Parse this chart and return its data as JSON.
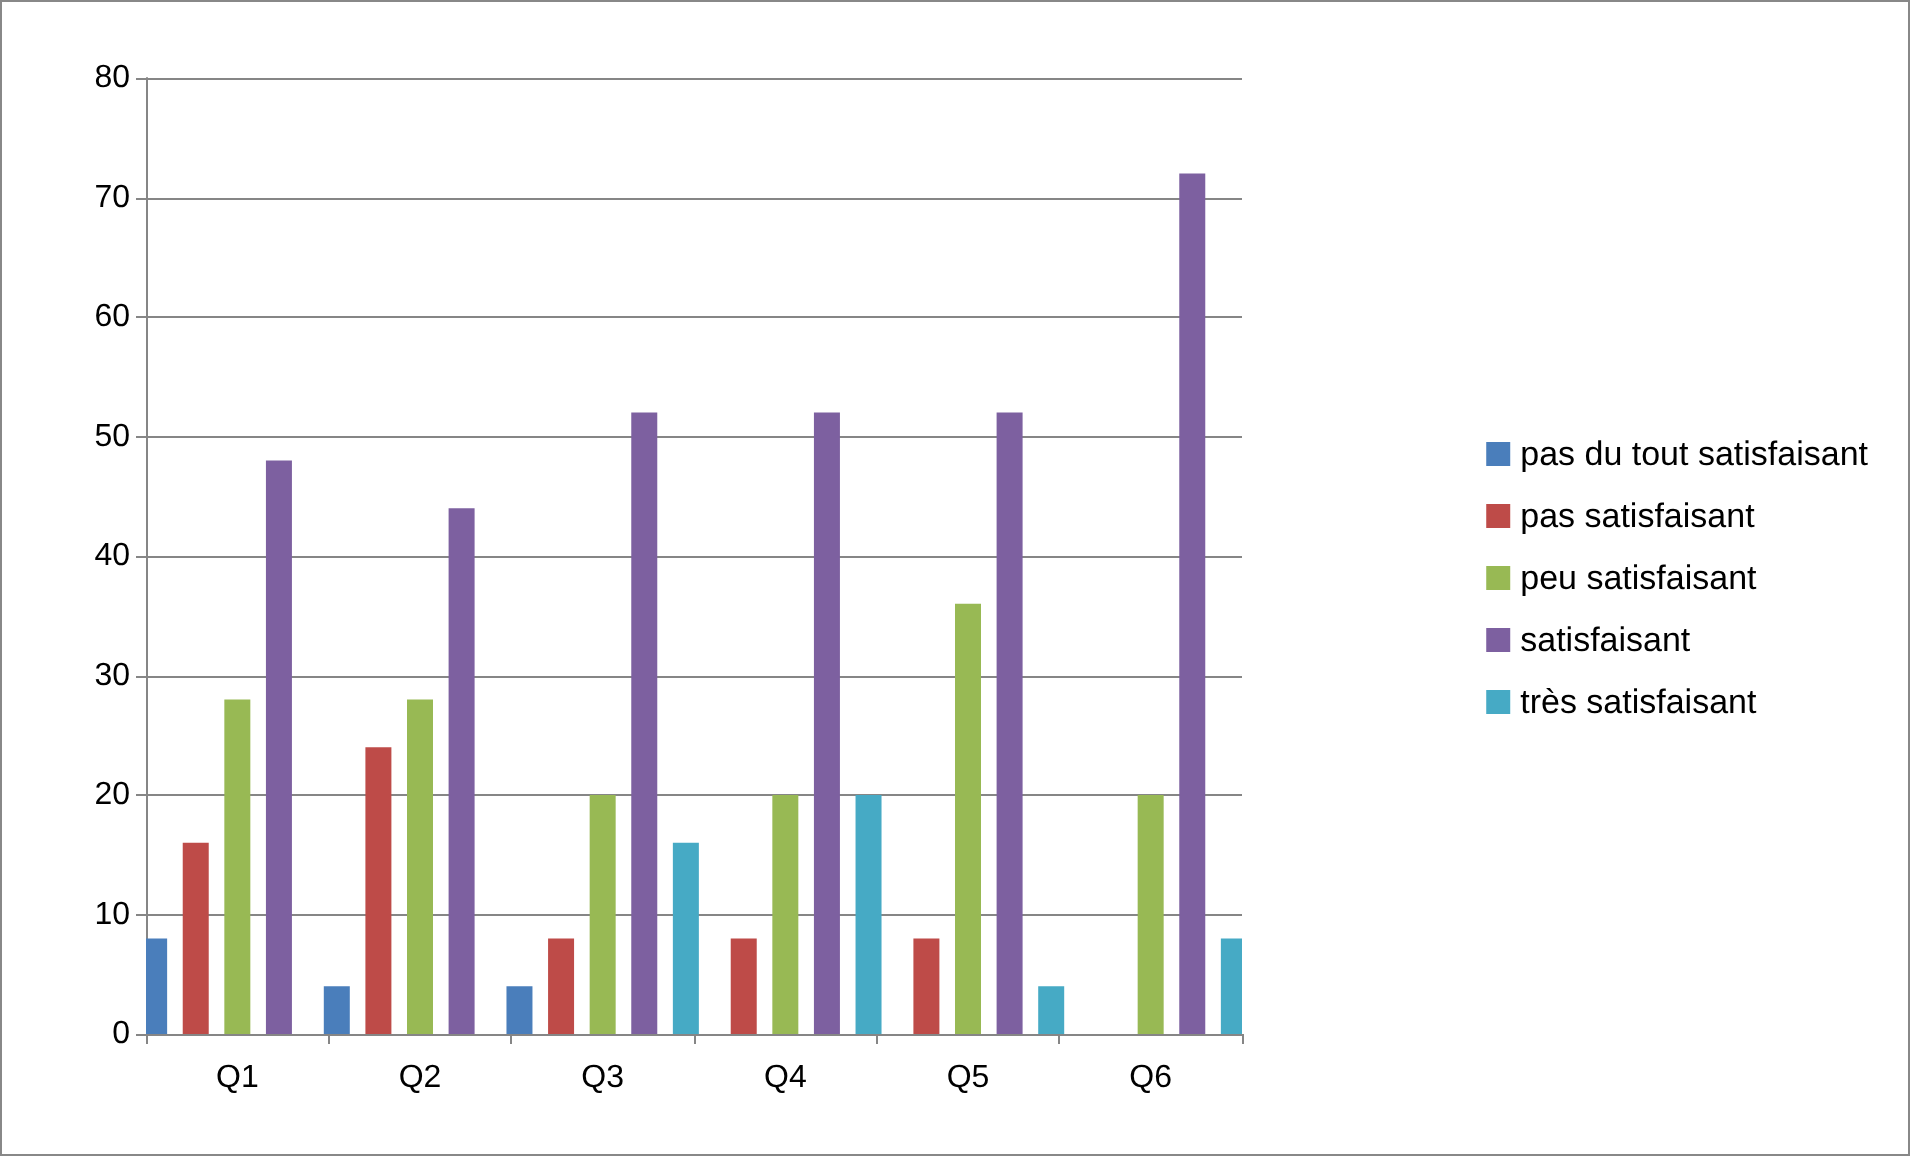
{
  "chart_data": {
    "type": "bar",
    "categories": [
      "Q1",
      "Q2",
      "Q3",
      "Q4",
      "Q5",
      "Q6"
    ],
    "series": [
      {
        "name": "pas du tout satisfaisant",
        "color": "#4a7ebb",
        "values": [
          8,
          4,
          4,
          0,
          0,
          0
        ]
      },
      {
        "name": "pas satisfaisant",
        "color": "#be4b48",
        "values": [
          16,
          24,
          8,
          8,
          8,
          0
        ]
      },
      {
        "name": "peu satisfaisant",
        "color": "#98b954",
        "values": [
          28,
          28,
          20,
          20,
          36,
          20
        ]
      },
      {
        "name": "satisfaisant",
        "color": "#7d60a0",
        "values": [
          48,
          44,
          52,
          52,
          52,
          72
        ]
      },
      {
        "name": "très satisfaisant",
        "color": "#46aac5",
        "values": [
          0,
          0,
          16,
          20,
          4,
          8
        ]
      }
    ],
    "ylim": [
      0,
      80
    ],
    "yticks": [
      0,
      10,
      20,
      30,
      40,
      50,
      60,
      70,
      80
    ],
    "grid": "y",
    "legend": "right"
  }
}
